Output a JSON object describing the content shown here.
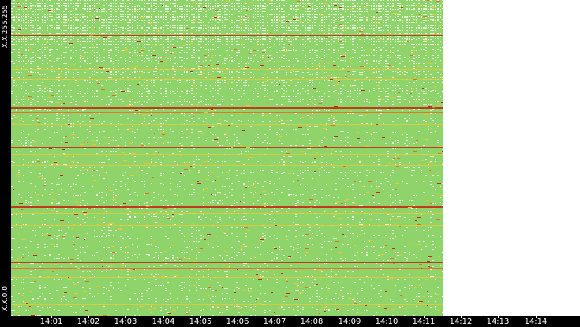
{
  "chart_data": {
    "type": "heatmap",
    "title": "",
    "y_axis": {
      "top_label": "X.X.255.255",
      "bottom_label": "X.X.0.0"
    },
    "x_axis": {
      "tick_labels": [
        "14:01",
        "14:02",
        "14:03",
        "14:04",
        "14:05",
        "14:06",
        "14:07",
        "14:08",
        "14:09",
        "14:10",
        "14:11",
        "14:12",
        "14:13",
        "14:14"
      ],
      "data_end_label": "14:11"
    },
    "colors": {
      "background_cell": "#8fd46a",
      "sparse_cell": "#ffffff",
      "low": "#7cc64f",
      "medium": "#e8c832",
      "high": "#e07020",
      "very_high": "#c82818"
    },
    "legend": "none",
    "grid": false
  }
}
